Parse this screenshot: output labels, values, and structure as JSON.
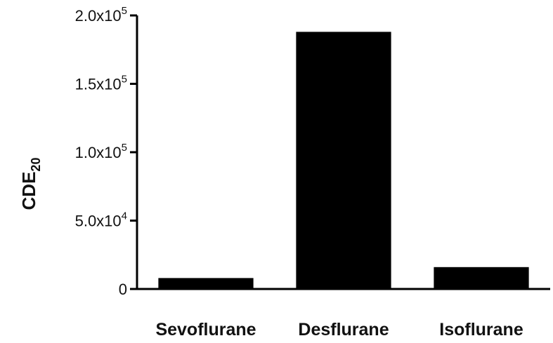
{
  "chart_data": {
    "type": "bar",
    "title": "",
    "xlabel": "",
    "ylabel": {
      "main": "CDE",
      "subscript": "20"
    },
    "categories": [
      "Sevoflurane",
      "Desflurane",
      "Isoflurane"
    ],
    "values": [
      8000,
      188000,
      16000
    ],
    "ylim": [
      0,
      200000
    ],
    "yticks": [
      {
        "value": 0,
        "label": "0",
        "exp": ""
      },
      {
        "value": 50000,
        "label": "5.0x10",
        "exp": "4"
      },
      {
        "value": 100000,
        "label": "1.0x10",
        "exp": "5"
      },
      {
        "value": 150000,
        "label": "1.5x10",
        "exp": "5"
      },
      {
        "value": 200000,
        "label": "2.0x10",
        "exp": "5"
      }
    ],
    "grid": false,
    "legend": "none",
    "bar_color": "#000000"
  }
}
